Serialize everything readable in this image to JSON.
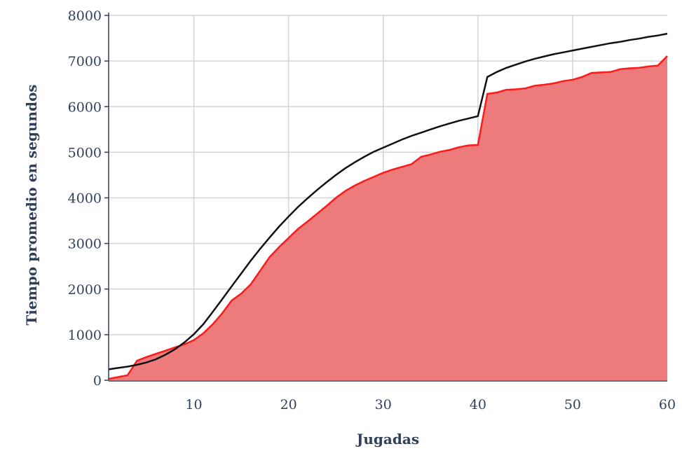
{
  "chart_data": {
    "type": "area",
    "xlabel": "Jugadas",
    "ylabel": "Tiempo promedio en segundos",
    "xlim": [
      1,
      60
    ],
    "ylim": [
      0,
      8000
    ],
    "xticks": [
      10,
      20,
      30,
      40,
      50,
      60
    ],
    "yticks": [
      0,
      1000,
      2000,
      3000,
      4000,
      5000,
      6000,
      7000,
      8000
    ],
    "grid": true,
    "legend": "none",
    "colors": {
      "area_fill": "#ee7b7b",
      "area_line": "#ff1a1a",
      "line": "#111111",
      "axis": "#2f3f5a",
      "grid": "#d4d4d4"
    },
    "series": [
      {
        "type": "area",
        "x": [
          1,
          2,
          3,
          4,
          5,
          6,
          7,
          8,
          9,
          10,
          11,
          12,
          13,
          14,
          15,
          16,
          17,
          18,
          19,
          20,
          21,
          22,
          23,
          24,
          25,
          26,
          27,
          28,
          29,
          30,
          31,
          32,
          33,
          34,
          35,
          36,
          37,
          38,
          39,
          40,
          41,
          42,
          43,
          44,
          45,
          46,
          47,
          48,
          49,
          50,
          51,
          52,
          53,
          54,
          55,
          56,
          57,
          58,
          59,
          60
        ],
        "values": [
          30,
          70,
          110,
          430,
          510,
          580,
          650,
          720,
          790,
          880,
          1030,
          1230,
          1470,
          1750,
          1900,
          2100,
          2400,
          2700,
          2920,
          3120,
          3320,
          3480,
          3650,
          3820,
          4000,
          4150,
          4270,
          4370,
          4460,
          4550,
          4620,
          4680,
          4740,
          4900,
          4950,
          5010,
          5050,
          5110,
          5150,
          5160,
          6280,
          6310,
          6370,
          6380,
          6400,
          6460,
          6480,
          6510,
          6560,
          6590,
          6650,
          6740,
          6750,
          6760,
          6820,
          6840,
          6850,
          6880,
          6900,
          7110
        ]
      },
      {
        "type": "line",
        "x": [
          1,
          2,
          3,
          4,
          5,
          6,
          7,
          8,
          9,
          10,
          11,
          12,
          13,
          14,
          15,
          16,
          17,
          18,
          19,
          20,
          21,
          22,
          23,
          24,
          25,
          26,
          27,
          28,
          29,
          30,
          31,
          32,
          33,
          34,
          35,
          36,
          37,
          38,
          39,
          40,
          41,
          42,
          43,
          44,
          45,
          46,
          47,
          48,
          49,
          50,
          51,
          52,
          53,
          54,
          55,
          56,
          57,
          58,
          59,
          60
        ],
        "values": [
          240,
          270,
          300,
          340,
          390,
          460,
          560,
          680,
          830,
          1010,
          1230,
          1500,
          1780,
          2060,
          2340,
          2620,
          2880,
          3130,
          3370,
          3590,
          3800,
          3990,
          4170,
          4340,
          4500,
          4650,
          4780,
          4900,
          5010,
          5100,
          5190,
          5280,
          5360,
          5430,
          5500,
          5570,
          5630,
          5690,
          5740,
          5790,
          6650,
          6760,
          6850,
          6920,
          6990,
          7050,
          7100,
          7150,
          7190,
          7230,
          7270,
          7310,
          7350,
          7390,
          7420,
          7460,
          7490,
          7530,
          7560,
          7600
        ]
      }
    ]
  }
}
